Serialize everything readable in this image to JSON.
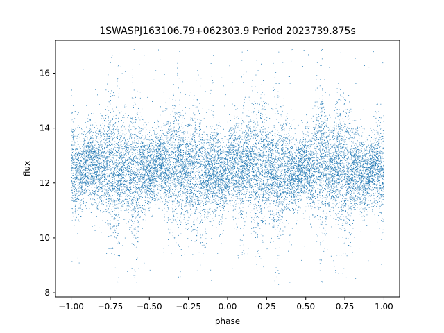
{
  "chart_data": {
    "type": "scatter",
    "title": "1SWASPJ163106.79+062303.9 Period 2023739.875s",
    "xlabel": "phase",
    "ylabel": "flux",
    "xlim": [
      -1.1,
      1.1
    ],
    "ylim": [
      7.85,
      17.2
    ],
    "x_ticks": [
      -1.0,
      -0.75,
      -0.5,
      -0.25,
      0.0,
      0.25,
      0.5,
      0.75,
      1.0
    ],
    "x_tick_labels": [
      "−1.00",
      "−0.75",
      "−0.50",
      "−0.25",
      "0.00",
      "0.25",
      "0.50",
      "0.75",
      "1.00"
    ],
    "y_ticks": [
      8,
      10,
      12,
      14,
      16
    ],
    "y_tick_labels": [
      "8",
      "10",
      "12",
      "14",
      "16"
    ],
    "marker_color": "#1f77b4",
    "grid": false,
    "legend": "none",
    "series": [
      {
        "phase_range": [
          -1.0,
          1.0
        ],
        "symmetric_about_zero": true,
        "core_band_flux": [
          11.0,
          14.2
        ],
        "median_flux": 12.5,
        "flux_extent": [
          8.3,
          16.9
        ],
        "vertical_streak_phases": [
          -0.7,
          -0.4,
          -0.32,
          0.1,
          0.3,
          0.6,
          0.7
        ]
      }
    ]
  }
}
